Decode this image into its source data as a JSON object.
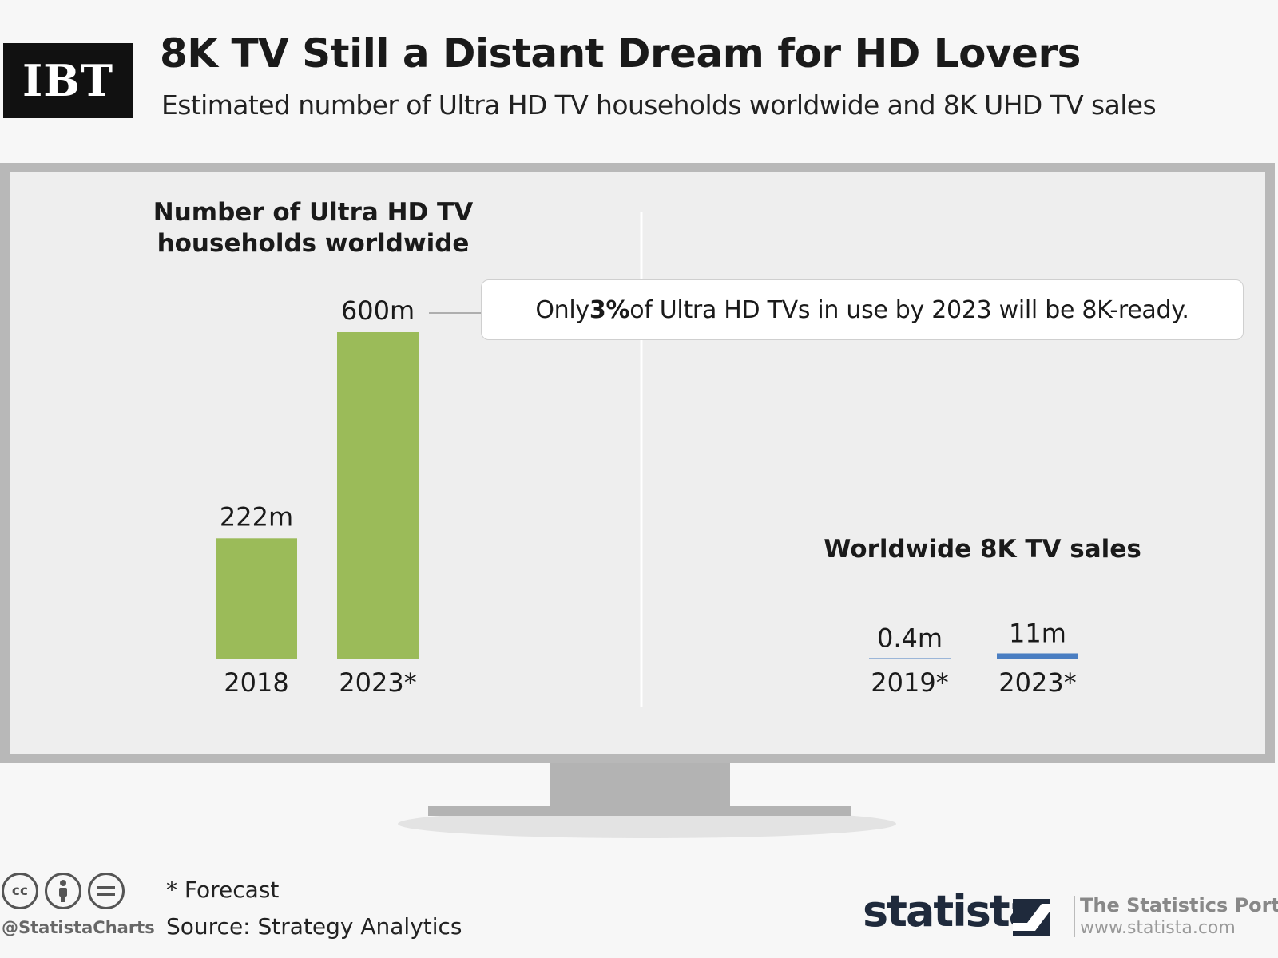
{
  "brand": {
    "logo_text": "IBT"
  },
  "header": {
    "title": "8K TV Still a Distant Dream for HD Lovers",
    "subtitle": "Estimated number of Ultra HD TV households worldwide and 8K UHD TV sales"
  },
  "callout": {
    "prefix": "Only ",
    "highlight": "3%",
    "suffix": " of Ultra HD TVs in use by 2023 will be 8K-ready."
  },
  "chart_data": [
    {
      "type": "bar",
      "title_lines": [
        "Number of Ultra HD TV",
        "households worldwide"
      ],
      "categories": [
        "2018",
        "2023*"
      ],
      "values": [
        222,
        600
      ],
      "value_labels": [
        "222m",
        "600m"
      ],
      "unit": "m",
      "color": "#9bbb59",
      "ylim": [
        0,
        600
      ]
    },
    {
      "type": "bar",
      "title": "Worldwide 8K TV sales",
      "categories": [
        "2019*",
        "2023*"
      ],
      "values": [
        0.4,
        11
      ],
      "value_labels": [
        "0.4m",
        "11m"
      ],
      "unit": "m",
      "color": "#4a7ec2",
      "ylim": [
        0,
        600
      ]
    }
  ],
  "footer": {
    "handle": "@StatistaCharts",
    "footnote": "* Forecast",
    "source": "Source: Strategy Analytics",
    "statista": "statista",
    "portal_name": "The Statistics Portal",
    "portal_url": "www.statista.com",
    "icons": [
      "cc-icon",
      "attribution-icon",
      "no-derivatives-icon"
    ]
  }
}
